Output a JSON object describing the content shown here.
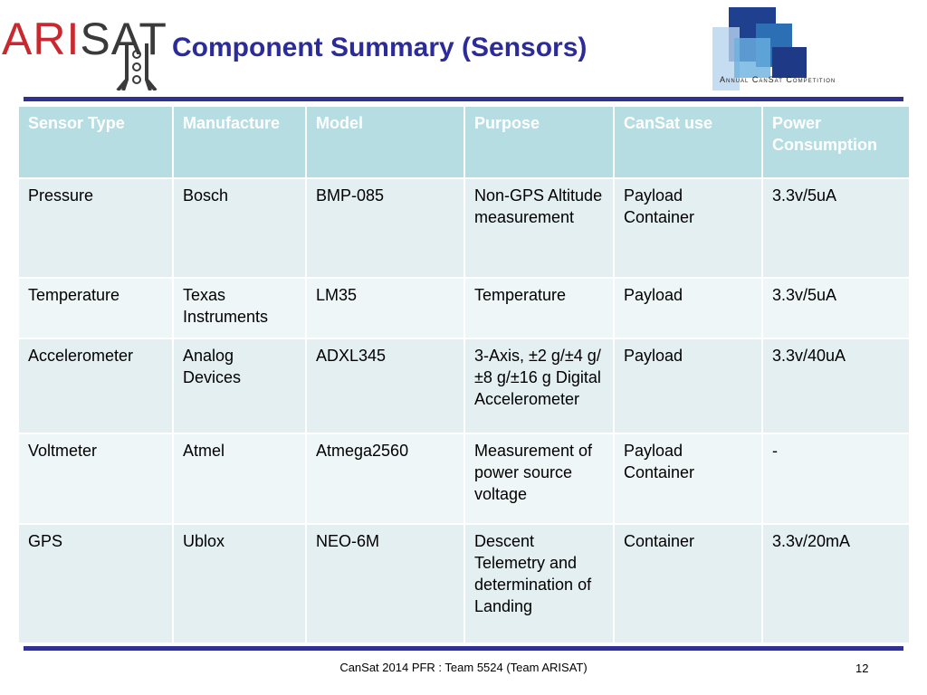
{
  "header": {
    "logo_text": "ARISAT",
    "title": "Component Summary (Sensors)",
    "competition_logo_text": "Annual CanSat Competition"
  },
  "table": {
    "columns": [
      "Sensor Type",
      "Manufacture",
      "Model",
      "Purpose",
      "CanSat use",
      "Power Consumption"
    ],
    "rows": [
      [
        "Pressure",
        "Bosch",
        "BMP-085",
        "Non-GPS Altitude measurement",
        "Payload Container",
        "3.3v/5uA"
      ],
      [
        "Temperature",
        "Texas Instruments",
        "LM35",
        "Temperature",
        "Payload",
        "3.3v/5uA"
      ],
      [
        "Accelerometer",
        "Analog Devices",
        "ADXL345",
        "3-Axis, ±2 g/±4 g/±8 g/±16 g Digital Accelerometer",
        "Payload",
        "3.3v/40uA"
      ],
      [
        "Voltmeter",
        "Atmel",
        "Atmega2560",
        "Measurement of power source voltage",
        "Payload Container",
        "-"
      ],
      [
        "GPS",
        "Ublox",
        "NEO-6M",
        "Descent Telemetry and determination of Landing",
        "Container",
        "3.3v/20mA"
      ]
    ]
  },
  "footer": {
    "text": "CanSat 2014 PFR :  Team 5524 (Team ARISAT)",
    "page_number": "12"
  },
  "colors": {
    "title": "#2b2b9a",
    "rule": "#2e3192",
    "header_bg": "#b5dde2",
    "row_odd": "#e3eff1",
    "row_even": "#eef6f7"
  }
}
